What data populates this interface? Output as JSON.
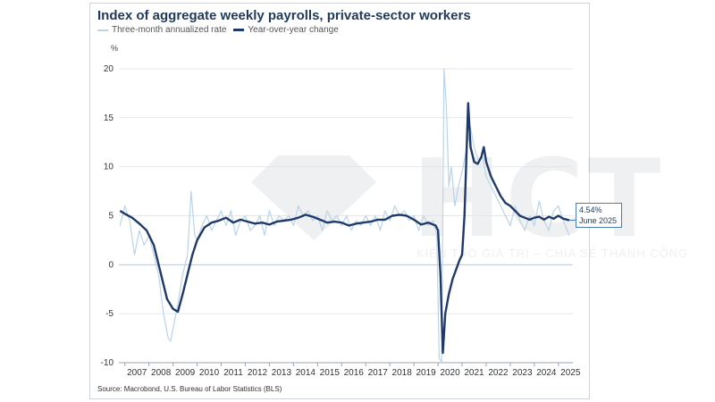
{
  "header": {
    "title": "Index of aggregate weekly payrolls, private-sector workers",
    "legend": [
      {
        "label": "Three-month annualized rate",
        "color": "#b9d4ea"
      },
      {
        "label": "Year-over-year change",
        "color": "#1f3a6a"
      }
    ],
    "unit": "%"
  },
  "callout": {
    "value": "4.54%",
    "date": "June 2025"
  },
  "source": "Source: Macrobond, U.S. Bureau of Labor Statistics (BLS)",
  "watermark": {
    "letters": "HCT",
    "tagline": "KIẾN TẠO GIÁ TRỊ – CHIA SẺ THÀNH CÔNG"
  },
  "chart_data": {
    "type": "line",
    "title": "Index of aggregate weekly payrolls, private-sector workers",
    "ylabel": "%",
    "xlim": [
      2006.75,
      2025.6
    ],
    "ylim": [
      -10,
      21
    ],
    "yticks": [
      -10,
      -5,
      0,
      5,
      10,
      15,
      20
    ],
    "xticks": [
      "2007",
      "2008",
      "2009",
      "2010",
      "2011",
      "2012",
      "2013",
      "2014",
      "2015",
      "2016",
      "2017",
      "2018",
      "2019",
      "2020",
      "2021",
      "2022",
      "2023",
      "2024",
      "2025"
    ],
    "grid": "horizontal",
    "legend_position": "top-left",
    "series": [
      {
        "name": "Three-month annualized rate",
        "color": "#b9d4ea",
        "points": [
          [
            2006.8,
            4.0
          ],
          [
            2007.0,
            6.0
          ],
          [
            2007.2,
            4.5
          ],
          [
            2007.4,
            1.0
          ],
          [
            2007.6,
            3.5
          ],
          [
            2007.8,
            2.0
          ],
          [
            2008.0,
            3.0
          ],
          [
            2008.2,
            1.0
          ],
          [
            2008.4,
            -1.0
          ],
          [
            2008.6,
            -5.0
          ],
          [
            2008.8,
            -7.5
          ],
          [
            2008.9,
            -7.8
          ],
          [
            2009.0,
            -6.5
          ],
          [
            2009.2,
            -4.0
          ],
          [
            2009.4,
            -1.0
          ],
          [
            2009.6,
            1.0
          ],
          [
            2009.75,
            7.5
          ],
          [
            2009.9,
            3.0
          ],
          [
            2010.0,
            2.5
          ],
          [
            2010.2,
            4.0
          ],
          [
            2010.4,
            5.0
          ],
          [
            2010.6,
            3.5
          ],
          [
            2010.8,
            4.5
          ],
          [
            2011.0,
            5.5
          ],
          [
            2011.2,
            4.0
          ],
          [
            2011.4,
            5.5
          ],
          [
            2011.6,
            3.0
          ],
          [
            2011.8,
            4.5
          ],
          [
            2012.0,
            5.0
          ],
          [
            2012.2,
            3.5
          ],
          [
            2012.4,
            4.0
          ],
          [
            2012.6,
            5.0
          ],
          [
            2012.8,
            3.0
          ],
          [
            2013.0,
            5.5
          ],
          [
            2013.2,
            4.0
          ],
          [
            2013.4,
            5.0
          ],
          [
            2013.6,
            4.5
          ],
          [
            2013.8,
            5.0
          ],
          [
            2014.0,
            4.0
          ],
          [
            2014.2,
            6.0
          ],
          [
            2014.4,
            5.0
          ],
          [
            2014.6,
            5.5
          ],
          [
            2014.8,
            4.5
          ],
          [
            2015.0,
            5.0
          ],
          [
            2015.2,
            3.5
          ],
          [
            2015.4,
            5.5
          ],
          [
            2015.6,
            4.5
          ],
          [
            2015.8,
            5.0
          ],
          [
            2016.0,
            4.0
          ],
          [
            2016.2,
            5.0
          ],
          [
            2016.4,
            3.5
          ],
          [
            2016.6,
            4.5
          ],
          [
            2016.8,
            4.0
          ],
          [
            2017.0,
            5.0
          ],
          [
            2017.2,
            4.0
          ],
          [
            2017.4,
            5.0
          ],
          [
            2017.6,
            3.5
          ],
          [
            2017.8,
            5.5
          ],
          [
            2018.0,
            4.5
          ],
          [
            2018.2,
            6.0
          ],
          [
            2018.4,
            5.0
          ],
          [
            2018.6,
            5.5
          ],
          [
            2018.8,
            4.5
          ],
          [
            2019.0,
            5.0
          ],
          [
            2019.2,
            3.5
          ],
          [
            2019.4,
            5.0
          ],
          [
            2019.6,
            4.0
          ],
          [
            2019.8,
            4.5
          ],
          [
            2019.95,
            3.0
          ],
          [
            2020.05,
            -9.5
          ],
          [
            2020.15,
            -10.0
          ],
          [
            2020.25,
            20.0
          ],
          [
            2020.35,
            16.0
          ],
          [
            2020.45,
            8.0
          ],
          [
            2020.55,
            10.0
          ],
          [
            2020.7,
            6.0
          ],
          [
            2020.85,
            8.0
          ],
          [
            2021.0,
            9.5
          ],
          [
            2021.2,
            12.0
          ],
          [
            2021.35,
            14.0
          ],
          [
            2021.5,
            12.0
          ],
          [
            2021.7,
            10.5
          ],
          [
            2021.85,
            11.0
          ],
          [
            2022.0,
            9.0
          ],
          [
            2022.2,
            8.0
          ],
          [
            2022.4,
            7.0
          ],
          [
            2022.6,
            6.0
          ],
          [
            2022.8,
            5.0
          ],
          [
            2023.0,
            4.0
          ],
          [
            2023.2,
            6.0
          ],
          [
            2023.4,
            4.5
          ],
          [
            2023.6,
            3.5
          ],
          [
            2023.8,
            5.0
          ],
          [
            2024.0,
            4.0
          ],
          [
            2024.2,
            6.5
          ],
          [
            2024.4,
            4.5
          ],
          [
            2024.6,
            3.5
          ],
          [
            2024.8,
            5.5
          ],
          [
            2025.0,
            6.0
          ],
          [
            2025.2,
            4.5
          ],
          [
            2025.45,
            3.0
          ]
        ]
      },
      {
        "name": "Year-over-year change",
        "color": "#1f3a6a",
        "points": [
          [
            2006.8,
            5.5
          ],
          [
            2007.0,
            5.2
          ],
          [
            2007.3,
            4.8
          ],
          [
            2007.6,
            4.2
          ],
          [
            2007.9,
            3.5
          ],
          [
            2008.2,
            2.0
          ],
          [
            2008.5,
            -1.0
          ],
          [
            2008.75,
            -3.5
          ],
          [
            2009.0,
            -4.5
          ],
          [
            2009.2,
            -4.8
          ],
          [
            2009.4,
            -3.0
          ],
          [
            2009.6,
            -1.0
          ],
          [
            2009.8,
            1.0
          ],
          [
            2010.0,
            2.5
          ],
          [
            2010.3,
            3.8
          ],
          [
            2010.6,
            4.3
          ],
          [
            2010.9,
            4.5
          ],
          [
            2011.2,
            4.8
          ],
          [
            2011.5,
            4.3
          ],
          [
            2011.8,
            4.6
          ],
          [
            2012.1,
            4.4
          ],
          [
            2012.4,
            4.2
          ],
          [
            2012.7,
            4.3
          ],
          [
            2013.0,
            4.1
          ],
          [
            2013.3,
            4.4
          ],
          [
            2013.6,
            4.5
          ],
          [
            2013.9,
            4.6
          ],
          [
            2014.2,
            4.8
          ],
          [
            2014.5,
            5.1
          ],
          [
            2014.8,
            4.9
          ],
          [
            2015.1,
            4.6
          ],
          [
            2015.4,
            4.3
          ],
          [
            2015.7,
            4.4
          ],
          [
            2016.0,
            4.3
          ],
          [
            2016.3,
            4.0
          ],
          [
            2016.6,
            4.2
          ],
          [
            2016.9,
            4.3
          ],
          [
            2017.2,
            4.4
          ],
          [
            2017.5,
            4.6
          ],
          [
            2017.8,
            4.6
          ],
          [
            2018.1,
            5.0
          ],
          [
            2018.4,
            5.1
          ],
          [
            2018.7,
            5.0
          ],
          [
            2019.0,
            4.6
          ],
          [
            2019.3,
            4.1
          ],
          [
            2019.6,
            4.3
          ],
          [
            2019.9,
            4.0
          ],
          [
            2020.0,
            3.5
          ],
          [
            2020.1,
            -1.0
          ],
          [
            2020.2,
            -9.0
          ],
          [
            2020.3,
            -5.0
          ],
          [
            2020.45,
            -3.0
          ],
          [
            2020.6,
            -1.5
          ],
          [
            2020.75,
            -0.5
          ],
          [
            2020.9,
            0.5
          ],
          [
            2021.0,
            1.0
          ],
          [
            2021.1,
            5.0
          ],
          [
            2021.25,
            16.5
          ],
          [
            2021.35,
            12.0
          ],
          [
            2021.5,
            10.5
          ],
          [
            2021.65,
            10.3
          ],
          [
            2021.8,
            11.0
          ],
          [
            2021.9,
            12.0
          ],
          [
            2022.0,
            10.5
          ],
          [
            2022.2,
            9.0
          ],
          [
            2022.4,
            8.0
          ],
          [
            2022.6,
            7.0
          ],
          [
            2022.8,
            6.3
          ],
          [
            2023.0,
            6.0
          ],
          [
            2023.2,
            5.5
          ],
          [
            2023.4,
            5.0
          ],
          [
            2023.6,
            4.8
          ],
          [
            2023.8,
            4.6
          ],
          [
            2024.0,
            4.8
          ],
          [
            2024.2,
            4.9
          ],
          [
            2024.4,
            4.6
          ],
          [
            2024.6,
            4.9
          ],
          [
            2024.8,
            4.7
          ],
          [
            2025.0,
            5.0
          ],
          [
            2025.2,
            4.7
          ],
          [
            2025.45,
            4.54
          ]
        ]
      }
    ],
    "annotation": {
      "text": "4.54% June 2025",
      "x": 2025.45,
      "y": 4.54
    }
  }
}
